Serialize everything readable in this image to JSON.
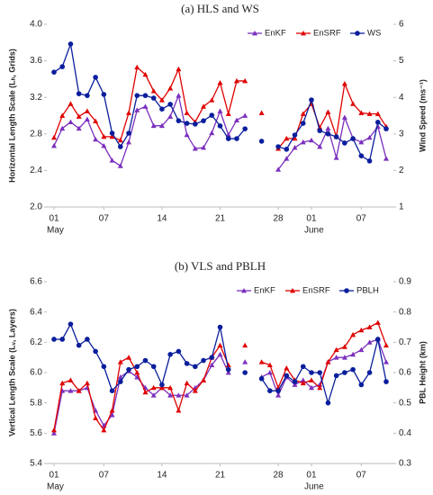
{
  "chart_data": [
    {
      "type": "line",
      "title": "(a) HLS and WS",
      "legend": "upper right",
      "categories": [
        "01",
        null,
        null,
        null,
        null,
        null,
        "07",
        null,
        null,
        null,
        null,
        null,
        null,
        "14",
        null,
        null,
        null,
        null,
        null,
        null,
        "21",
        null,
        null,
        null,
        null,
        null,
        null,
        "28",
        null,
        null,
        null,
        "01",
        null,
        null,
        null,
        null,
        null,
        "07",
        null,
        null,
        null
      ],
      "months": [
        "May",
        "June"
      ],
      "ylabel": "Horizontal Length Scale (Lₕ, Grids)",
      "y2label": "Wind Speed (ms⁻¹)",
      "ylim": [
        2.0,
        4.0
      ],
      "yticks": [
        {
          "value": 2,
          "label": "2.0"
        },
        2.4,
        2.8,
        3.2,
        3.6,
        {
          "value": 4,
          "label": "4.0"
        }
      ],
      "y2lim": [
        1,
        6
      ],
      "y2ticks": [
        1,
        2,
        3,
        4,
        5,
        6
      ],
      "series": [
        {
          "name": "EnKF",
          "color": "#7b2fbe",
          "marker": "triangle",
          "values": [
            2.67,
            2.86,
            2.93,
            2.86,
            2.96,
            2.74,
            2.67,
            2.51,
            2.45,
            2.71,
            3.06,
            3.1,
            2.89,
            2.89,
            2.99,
            3.22,
            2.79,
            2.64,
            2.65,
            2.81,
            3.05,
            2.79,
            2.95,
            3.0,
            null,
            null,
            null,
            2.41,
            2.53,
            2.65,
            2.71,
            2.73,
            2.66,
            2.86,
            2.54,
            2.98,
            2.75,
            2.71,
            2.76,
            2.88,
            2.53
          ]
        },
        {
          "name": "EnSRF",
          "color": "#e00000",
          "marker": "triangle",
          "values": [
            2.76,
            3.0,
            3.13,
            2.99,
            3.05,
            2.94,
            2.77,
            2.77,
            2.73,
            3.03,
            3.53,
            3.45,
            3.27,
            3.17,
            3.3,
            3.51,
            3.03,
            2.93,
            3.1,
            3.17,
            3.36,
            3.02,
            3.38,
            3.38,
            null,
            3.03,
            null,
            2.64,
            2.75,
            2.75,
            3.02,
            3.13,
            2.87,
            3.04,
            2.77,
            3.35,
            3.13,
            3.03,
            3.02,
            3.02,
            2.88
          ]
        },
        {
          "name": "WS",
          "color": "#0a1e9c",
          "marker": "circle",
          "axis": "y2",
          "values": [
            4.69,
            4.84,
            5.46,
            4.1,
            4.05,
            4.55,
            4.08,
            3.02,
            2.65,
            3.02,
            4.05,
            4.05,
            3.98,
            3.68,
            3.81,
            3.36,
            3.29,
            3.27,
            3.36,
            3.51,
            3.22,
            2.87,
            2.87,
            3.14,
            null,
            2.8,
            null,
            2.65,
            2.58,
            2.97,
            3.29,
            3.93,
            3.09,
            3.0,
            2.92,
            2.75,
            2.87,
            2.4,
            2.26,
            3.32,
            3.14
          ]
        }
      ]
    },
    {
      "type": "line",
      "title": "(b) VLS and PBLH",
      "legend": "upper right",
      "categories": [
        "01",
        null,
        null,
        null,
        null,
        null,
        "07",
        null,
        null,
        null,
        null,
        null,
        null,
        "14",
        null,
        null,
        null,
        null,
        null,
        null,
        "21",
        null,
        null,
        null,
        null,
        null,
        null,
        "28",
        null,
        null,
        null,
        "01",
        null,
        null,
        null,
        null,
        null,
        "07",
        null,
        null,
        null
      ],
      "months": [
        "May",
        "June"
      ],
      "ylabel": "Vertical Length Scale (Lᵥ, Layers)",
      "y2label": "PBL Height (km)",
      "ylim": [
        5.4,
        6.6
      ],
      "yticks": [
        5.4,
        5.6,
        5.8,
        {
          "value": 6,
          "label": "6.0"
        },
        6.2,
        6.4,
        6.6
      ],
      "y2lim": [
        0.3,
        0.9
      ],
      "y2ticks": [
        0.3,
        0.4,
        0.5,
        0.6,
        0.7,
        0.8,
        0.9
      ],
      "series": [
        {
          "name": "EnKF",
          "color": "#7b2fbe",
          "marker": "triangle",
          "values": [
            5.6,
            5.88,
            5.88,
            5.88,
            5.9,
            5.75,
            5.65,
            5.72,
            5.97,
            6.01,
            5.97,
            5.9,
            5.85,
            5.9,
            5.85,
            5.85,
            5.85,
            5.9,
            5.95,
            6.05,
            6.12,
            6.0,
            null,
            6.07,
            null,
            5.97,
            6.0,
            5.85,
            5.97,
            5.92,
            5.95,
            5.9,
            5.92,
            6.07,
            6.1,
            6.1,
            6.12,
            6.15,
            6.2,
            6.22,
            6.07
          ]
        },
        {
          "name": "EnSRF",
          "color": "#e00000",
          "marker": "triangle",
          "values": [
            5.62,
            5.93,
            5.95,
            5.88,
            5.93,
            5.7,
            5.62,
            5.75,
            6.07,
            6.1,
            6.0,
            5.87,
            5.9,
            5.9,
            5.9,
            5.75,
            5.93,
            5.88,
            5.95,
            6.1,
            6.18,
            6.05,
            null,
            6.18,
            null,
            6.07,
            6.05,
            5.9,
            6.03,
            5.95,
            5.93,
            5.95,
            5.9,
            6.07,
            6.15,
            6.17,
            6.25,
            6.28,
            6.3,
            6.33,
            6.18
          ]
        },
        {
          "name": "PBLH",
          "color": "#0a1e9c",
          "marker": "circle",
          "axis": "y2",
          "values": [
            0.71,
            0.71,
            0.76,
            0.69,
            0.71,
            0.67,
            0.62,
            0.54,
            0.57,
            0.61,
            0.62,
            0.64,
            0.62,
            0.56,
            0.66,
            0.67,
            0.63,
            0.62,
            0.64,
            0.65,
            0.75,
            0.61,
            null,
            0.6,
            null,
            0.58,
            0.54,
            0.54,
            0.59,
            0.57,
            0.62,
            0.6,
            0.6,
            0.5,
            0.59,
            0.6,
            0.61,
            0.56,
            0.6,
            0.71,
            0.57
          ]
        }
      ]
    }
  ]
}
